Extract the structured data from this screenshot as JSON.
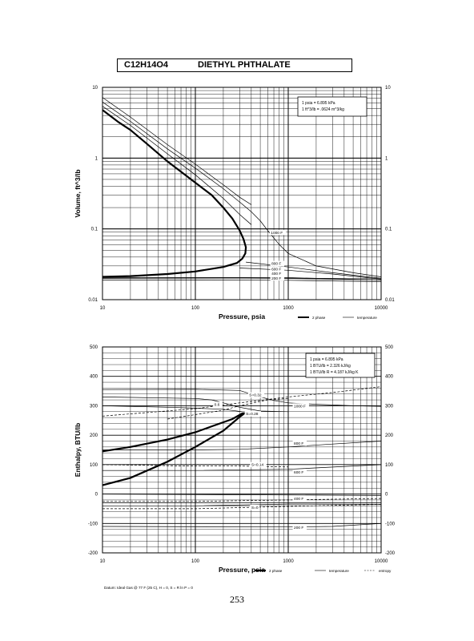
{
  "header": {
    "formula": "C12H14O4",
    "compound": "DIETHYL PHTHALATE"
  },
  "page_number": "253",
  "chart_data": [
    {
      "type": "line",
      "x_scale": "log",
      "y_scale": "log",
      "xlim": [
        10,
        10000
      ],
      "ylim": [
        0.01,
        10
      ],
      "xlabel": "Pressure, psia",
      "ylabel": "Volume, ft^3/lb",
      "x_ticks": [
        "10",
        "100",
        "1000",
        "10000"
      ],
      "y_ticks": [
        "0.01",
        "0.1",
        "1",
        "10"
      ],
      "conversion_note": [
        "1 psia = 6.895 kPa",
        "1 ft^3/lb = .0624 m^3/kg"
      ],
      "legend": [
        {
          "label": "2 phase",
          "style": "thick"
        },
        {
          "label": "temperature",
          "style": "thin"
        }
      ],
      "series": [
        {
          "style": "thick",
          "points": [
            [
              10,
              4.8
            ],
            [
              15,
              3.2
            ],
            [
              20,
              2.5
            ],
            [
              30,
              1.6
            ],
            [
              50,
              0.9
            ],
            [
              100,
              0.45
            ],
            [
              150,
              0.3
            ],
            [
              200,
              0.2
            ],
            [
              250,
              0.14
            ],
            [
              300,
              0.095
            ],
            [
              330,
              0.072
            ],
            [
              350,
              0.055
            ],
            [
              345,
              0.045
            ],
            [
              320,
              0.038
            ],
            [
              280,
              0.033
            ],
            [
              200,
              0.029
            ],
            [
              100,
              0.025
            ],
            [
              50,
              0.023
            ],
            [
              20,
              0.0215
            ],
            [
              10,
              0.021
            ]
          ]
        },
        {
          "style": "thin",
          "points": [
            [
              10,
              5.4
            ],
            [
              20,
              2.9
            ],
            [
              50,
              1.15
            ],
            [
              100,
              0.58
            ],
            [
              200,
              0.27
            ],
            [
              300,
              0.16
            ],
            [
              400,
              0.115
            ]
          ]
        },
        {
          "style": "thin",
          "points": [
            [
              10,
              6.2
            ],
            [
              20,
              3.3
            ],
            [
              50,
              1.35
            ],
            [
              100,
              0.72
            ],
            [
              200,
              0.37
            ],
            [
              300,
              0.24
            ],
            [
              400,
              0.175
            ],
            [
              500,
              0.13
            ],
            [
              600,
              0.095
            ],
            [
              800,
              0.06
            ],
            [
              1000,
              0.045
            ],
            [
              2000,
              0.03
            ],
            [
              5000,
              0.024
            ],
            [
              10000,
              0.021
            ]
          ]
        },
        {
          "style": "thin",
          "points": [
            [
              10,
              7.2
            ],
            [
              20,
              3.8
            ],
            [
              50,
              1.55
            ],
            [
              100,
              0.82
            ],
            [
              200,
              0.42
            ],
            [
              300,
              0.28
            ],
            [
              400,
              0.22
            ]
          ]
        },
        {
          "style": "thin",
          "points": [
            [
              350,
              0.034
            ],
            [
              1000,
              0.029
            ],
            [
              3000,
              0.024
            ],
            [
              10000,
              0.02
            ]
          ]
        },
        {
          "style": "thin",
          "points": [
            [
              300,
              0.028
            ],
            [
              1000,
              0.026
            ],
            [
              3000,
              0.023
            ],
            [
              10000,
              0.0195
            ]
          ]
        },
        {
          "style": "thin",
          "points": [
            [
              10,
              0.0205
            ],
            [
              1000,
              0.0205
            ],
            [
              10000,
              0.019
            ]
          ]
        },
        {
          "style": "thin",
          "points": [
            [
              10,
              0.019
            ],
            [
              1000,
              0.0188
            ],
            [
              10000,
              0.018
            ]
          ]
        },
        {
          "style": "thin",
          "points": [
            [
              10,
              0.02
            ],
            [
              300,
              0.0205
            ],
            [
              10000,
              0.019
            ]
          ]
        }
      ],
      "annotations": [
        {
          "text": "1000 F",
          "x": 650,
          "y": 0.085
        },
        {
          "text": "800 F",
          "x": 660,
          "y": 0.031
        },
        {
          "text": "600 F",
          "x": 660,
          "y": 0.026
        },
        {
          "text": "400 F",
          "x": 660,
          "y": 0.0225
        },
        {
          "text": "200 F",
          "x": 660,
          "y": 0.0193
        }
      ]
    },
    {
      "type": "line",
      "x_scale": "log",
      "xlim": [
        10,
        10000
      ],
      "ylim": [
        -200,
        500
      ],
      "xlabel": "Pressure, psia",
      "ylabel": "Enthalpy, BTU/lb",
      "x_ticks": [
        "10",
        "100",
        "1000",
        "10000"
      ],
      "y_ticks": [
        "500",
        "400",
        "300",
        "200",
        "100",
        "0",
        "-100",
        "-200"
      ],
      "conversion_note": [
        "1 psia = 6.895 kPa",
        "1 BTU/lb = 2.326 kJ/kg",
        "1 BTU/lb R = 4.187 kJ/kg K"
      ],
      "datum_note": "Datum: Ideal Gas @ 77 F (25 C), H = 0, S = R ln P = 0",
      "legend": [
        {
          "label": "2 phase",
          "style": "thick"
        },
        {
          "label": "temperature",
          "style": "thin"
        },
        {
          "label": "entropy",
          "style": "dashed"
        }
      ],
      "series": [
        {
          "style": "thick",
          "points": [
            [
              10,
              30
            ],
            [
              20,
              55
            ],
            [
              50,
              110
            ],
            [
              100,
              160
            ],
            [
              200,
              215
            ],
            [
              300,
              262
            ],
            [
              340,
              275
            ],
            [
              320,
              274
            ],
            [
              250,
              255
            ],
            [
              150,
              230
            ],
            [
              100,
              210
            ],
            [
              50,
              185
            ],
            [
              20,
              160
            ],
            [
              10,
              145
            ]
          ]
        },
        {
          "style": "thin",
          "points": [
            [
              10,
              355
            ],
            [
              100,
              356
            ],
            [
              300,
              352
            ],
            [
              500,
              330
            ],
            [
              700,
              318
            ],
            [
              1000,
              310
            ],
            [
              2000,
              305
            ],
            [
              5000,
              300
            ],
            [
              10000,
              298
            ]
          ]
        },
        {
          "style": "thin",
          "points": [
            [
              10,
              150
            ],
            [
              100,
              150
            ],
            [
              300,
              152
            ],
            [
              1000,
              160
            ],
            [
              3000,
              170
            ],
            [
              10000,
              180
            ]
          ]
        },
        {
          "style": "thin",
          "points": [
            [
              10,
              80
            ],
            [
              100,
              80
            ],
            [
              1000,
              84
            ],
            [
              10000,
              100
            ]
          ]
        },
        {
          "style": "thin",
          "points": [
            [
              10,
              -40
            ],
            [
              100,
              -40
            ],
            [
              1000,
              -34
            ],
            [
              10000,
              -35
            ]
          ]
        },
        {
          "style": "thin",
          "points": [
            [
              10,
              -110
            ],
            [
              1000,
              -112
            ],
            [
              3000,
              -110
            ],
            [
              10000,
              -100
            ]
          ]
        },
        {
          "style": "thin",
          "points": [
            [
              10,
              330
            ],
            [
              100,
              325
            ],
            [
              150,
              320
            ],
            [
              200,
              310
            ],
            [
              300,
              295
            ],
            [
              500,
              282
            ],
            [
              1000,
              280
            ]
          ]
        },
        {
          "style": "thin",
          "points": [
            [
              10,
              300
            ],
            [
              50,
              295
            ],
            [
              100,
              292
            ],
            [
              200,
              288
            ],
            [
              320,
              280
            ]
          ]
        },
        {
          "style": "thin",
          "points": [
            [
              10,
              0
            ],
            [
              10000,
              -5
            ]
          ]
        },
        {
          "style": "thin",
          "points": [
            [
              10,
              -30
            ],
            [
              10000,
              -30
            ]
          ]
        },
        {
          "style": "dashed",
          "points": [
            [
              10,
              265
            ],
            [
              100,
              290
            ],
            [
              300,
              310
            ],
            [
              1000,
              330
            ],
            [
              3000,
              345
            ],
            [
              10000,
              365
            ]
          ]
        },
        {
          "style": "dashed",
          "points": [
            [
              10,
              -50
            ],
            [
              100,
              -50
            ],
            [
              1000,
              -42
            ],
            [
              10000,
              -35
            ]
          ]
        },
        {
          "style": "dashed",
          "points": [
            [
              10,
              -25
            ],
            [
              100,
              -25
            ],
            [
              1000,
              -20
            ],
            [
              10000,
              -15
            ]
          ]
        },
        {
          "style": "dashed",
          "points": [
            [
              10,
              100
            ],
            [
              100,
              95
            ],
            [
              300,
              95
            ],
            [
              1000,
              92
            ]
          ]
        },
        {
          "style": "dashed",
          "points": [
            [
              50,
              255
            ],
            [
              200,
              285
            ],
            [
              300,
              300
            ],
            [
              600,
              320
            ],
            [
              1000,
              325
            ]
          ]
        }
      ],
      "annotations": [
        {
          "text": "S=0.32",
          "x": 380,
          "y": 332
        },
        {
          "text": "S=0.28",
          "x": 350,
          "y": 268
        },
        {
          "text": "1000 F",
          "x": 1150,
          "y": 295
        },
        {
          "text": "800 F",
          "x": 1150,
          "y": 168
        },
        {
          "text": "600 F",
          "x": 1150,
          "y": 70
        },
        {
          "text": "400 F",
          "x": 1150,
          "y": -20
        },
        {
          "text": "200 F",
          "x": 1150,
          "y": -118
        },
        {
          "text": "S=0.14",
          "x": 400,
          "y": 95
        },
        {
          "text": "S=0",
          "x": 400,
          "y": -50
        },
        {
          "text": "0.6",
          "x": 160,
          "y": 300
        }
      ]
    }
  ]
}
